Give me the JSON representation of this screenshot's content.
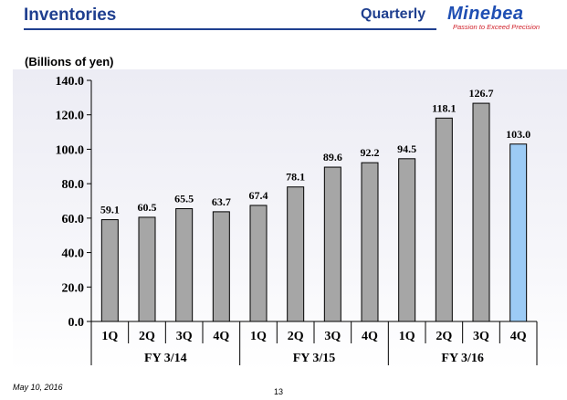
{
  "header": {
    "title": "Inventories",
    "period": "Quarterly",
    "logo_name": "Minebea",
    "logo_tagline": "Passion to Exceed Precision"
  },
  "footer": {
    "date": "May 10, 2016",
    "page": "13"
  },
  "colors": {
    "bar": "#a6a6a6",
    "highlight_bar": "#9ccbf5",
    "title": "#1f3f8f",
    "logo": "#1f4fb3",
    "tagline": "#d0202a"
  },
  "chart_data": {
    "type": "bar",
    "ylabel": "(Billions of yen)",
    "ylim": [
      0,
      140
    ],
    "yticks": [
      "0.0",
      "20.0",
      "40.0",
      "60.0",
      "80.0",
      "100.0",
      "120.0",
      "140.0"
    ],
    "ytick_values": [
      0,
      20,
      40,
      60,
      80,
      100,
      120,
      140
    ],
    "grid": false,
    "categories": [
      "1Q",
      "2Q",
      "3Q",
      "4Q",
      "1Q",
      "2Q",
      "3Q",
      "4Q",
      "1Q",
      "2Q",
      "3Q",
      "4Q"
    ],
    "groups": [
      {
        "label": "FY 3/14",
        "count": 4
      },
      {
        "label": "FY 3/15",
        "count": 4
      },
      {
        "label": "FY 3/16",
        "count": 4
      }
    ],
    "values": [
      59.1,
      60.5,
      65.5,
      63.7,
      67.4,
      78.1,
      89.6,
      92.2,
      94.5,
      118.1,
      126.7,
      103.0
    ],
    "data_labels": [
      "59.1",
      "60.5",
      "65.5",
      "63.7",
      "67.4",
      "78.1",
      "89.6",
      "92.2",
      "94.5",
      "118.1",
      "126.7",
      "103.0"
    ],
    "highlight_index": 11
  }
}
